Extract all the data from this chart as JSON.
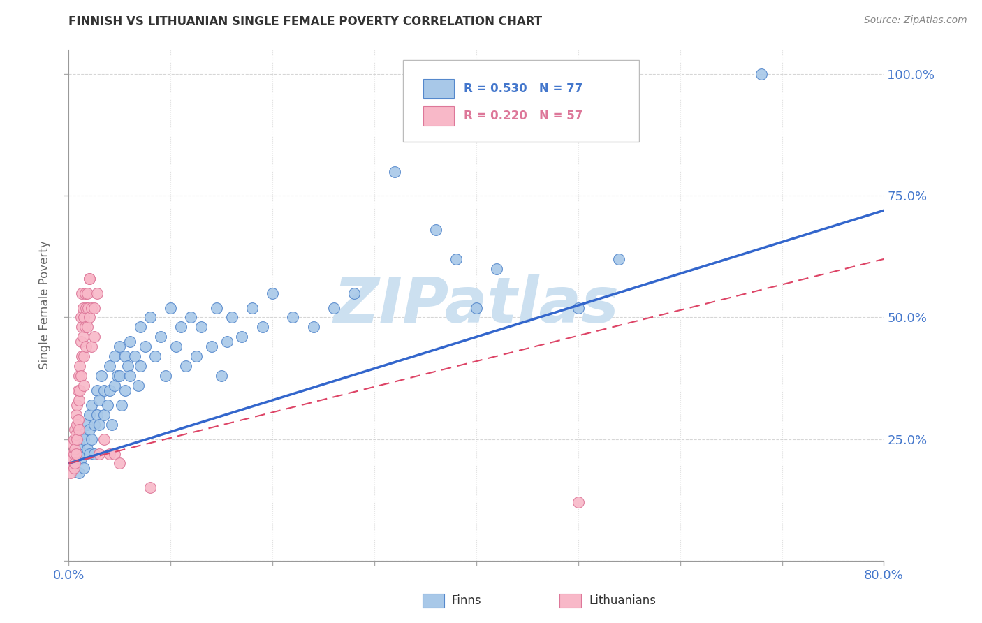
{
  "title": "FINNISH VS LITHUANIAN SINGLE FEMALE POVERTY CORRELATION CHART",
  "source": "Source: ZipAtlas.com",
  "ylabel": "Single Female Poverty",
  "legend_blue_r": "R = 0.530",
  "legend_blue_n": "N = 77",
  "legend_pink_r": "R = 0.220",
  "legend_pink_n": "N = 57",
  "legend_finns": "Finns",
  "legend_lithuanians": "Lithuanians",
  "blue_scatter_color": "#a8c8e8",
  "blue_edge_color": "#5588cc",
  "pink_scatter_color": "#f8b8c8",
  "pink_edge_color": "#dd7799",
  "blue_line_color": "#3366cc",
  "pink_line_color": "#dd4466",
  "watermark_color": "#cce0f0",
  "axis_label_color": "#4477cc",
  "grid_color": "#cccccc",
  "title_color": "#333333",
  "source_color": "#888888",
  "background_color": "#ffffff",
  "xlim": [
    0.0,
    0.8
  ],
  "ylim": [
    0.0,
    1.05
  ],
  "xtick_minor_positions": [
    0.1,
    0.2,
    0.3,
    0.4,
    0.5,
    0.6,
    0.7
  ],
  "ytick_positions": [
    0.0,
    0.25,
    0.5,
    0.75,
    1.0
  ],
  "blue_line_x": [
    0.0,
    0.8
  ],
  "blue_line_y": [
    0.2,
    0.72
  ],
  "pink_line_x": [
    0.0,
    0.8
  ],
  "pink_line_y": [
    0.2,
    0.62
  ],
  "finns_scatter": [
    [
      0.005,
      0.2
    ],
    [
      0.008,
      0.22
    ],
    [
      0.01,
      0.18
    ],
    [
      0.01,
      0.24
    ],
    [
      0.012,
      0.21
    ],
    [
      0.012,
      0.26
    ],
    [
      0.015,
      0.22
    ],
    [
      0.015,
      0.19
    ],
    [
      0.015,
      0.25
    ],
    [
      0.018,
      0.23
    ],
    [
      0.018,
      0.28
    ],
    [
      0.02,
      0.22
    ],
    [
      0.02,
      0.27
    ],
    [
      0.02,
      0.3
    ],
    [
      0.022,
      0.25
    ],
    [
      0.022,
      0.32
    ],
    [
      0.025,
      0.28
    ],
    [
      0.025,
      0.22
    ],
    [
      0.028,
      0.35
    ],
    [
      0.028,
      0.3
    ],
    [
      0.03,
      0.28
    ],
    [
      0.03,
      0.33
    ],
    [
      0.032,
      0.38
    ],
    [
      0.035,
      0.3
    ],
    [
      0.035,
      0.35
    ],
    [
      0.038,
      0.32
    ],
    [
      0.04,
      0.4
    ],
    [
      0.04,
      0.35
    ],
    [
      0.042,
      0.28
    ],
    [
      0.045,
      0.42
    ],
    [
      0.045,
      0.36
    ],
    [
      0.048,
      0.38
    ],
    [
      0.05,
      0.44
    ],
    [
      0.05,
      0.38
    ],
    [
      0.052,
      0.32
    ],
    [
      0.055,
      0.42
    ],
    [
      0.055,
      0.35
    ],
    [
      0.058,
      0.4
    ],
    [
      0.06,
      0.45
    ],
    [
      0.06,
      0.38
    ],
    [
      0.065,
      0.42
    ],
    [
      0.068,
      0.36
    ],
    [
      0.07,
      0.48
    ],
    [
      0.07,
      0.4
    ],
    [
      0.075,
      0.44
    ],
    [
      0.08,
      0.5
    ],
    [
      0.085,
      0.42
    ],
    [
      0.09,
      0.46
    ],
    [
      0.095,
      0.38
    ],
    [
      0.1,
      0.52
    ],
    [
      0.105,
      0.44
    ],
    [
      0.11,
      0.48
    ],
    [
      0.115,
      0.4
    ],
    [
      0.12,
      0.5
    ],
    [
      0.125,
      0.42
    ],
    [
      0.13,
      0.48
    ],
    [
      0.14,
      0.44
    ],
    [
      0.145,
      0.52
    ],
    [
      0.15,
      0.38
    ],
    [
      0.155,
      0.45
    ],
    [
      0.16,
      0.5
    ],
    [
      0.17,
      0.46
    ],
    [
      0.18,
      0.52
    ],
    [
      0.19,
      0.48
    ],
    [
      0.2,
      0.55
    ],
    [
      0.22,
      0.5
    ],
    [
      0.24,
      0.48
    ],
    [
      0.26,
      0.52
    ],
    [
      0.28,
      0.55
    ],
    [
      0.32,
      0.8
    ],
    [
      0.36,
      0.68
    ],
    [
      0.38,
      0.62
    ],
    [
      0.4,
      0.52
    ],
    [
      0.42,
      0.6
    ],
    [
      0.5,
      0.52
    ],
    [
      0.54,
      0.62
    ],
    [
      0.68,
      1.0
    ]
  ],
  "lithuanians_scatter": [
    [
      0.002,
      0.18
    ],
    [
      0.003,
      0.22
    ],
    [
      0.003,
      0.2
    ],
    [
      0.004,
      0.24
    ],
    [
      0.004,
      0.21
    ],
    [
      0.005,
      0.22
    ],
    [
      0.005,
      0.25
    ],
    [
      0.005,
      0.19
    ],
    [
      0.006,
      0.27
    ],
    [
      0.006,
      0.23
    ],
    [
      0.006,
      0.2
    ],
    [
      0.007,
      0.3
    ],
    [
      0.007,
      0.26
    ],
    [
      0.007,
      0.22
    ],
    [
      0.008,
      0.28
    ],
    [
      0.008,
      0.32
    ],
    [
      0.008,
      0.25
    ],
    [
      0.009,
      0.35
    ],
    [
      0.009,
      0.29
    ],
    [
      0.01,
      0.38
    ],
    [
      0.01,
      0.33
    ],
    [
      0.01,
      0.27
    ],
    [
      0.011,
      0.4
    ],
    [
      0.011,
      0.35
    ],
    [
      0.012,
      0.45
    ],
    [
      0.012,
      0.5
    ],
    [
      0.012,
      0.38
    ],
    [
      0.013,
      0.42
    ],
    [
      0.013,
      0.55
    ],
    [
      0.013,
      0.48
    ],
    [
      0.014,
      0.52
    ],
    [
      0.014,
      0.46
    ],
    [
      0.015,
      0.5
    ],
    [
      0.015,
      0.42
    ],
    [
      0.015,
      0.36
    ],
    [
      0.016,
      0.55
    ],
    [
      0.016,
      0.48
    ],
    [
      0.017,
      0.52
    ],
    [
      0.017,
      0.44
    ],
    [
      0.018,
      0.48
    ],
    [
      0.018,
      0.55
    ],
    [
      0.019,
      0.52
    ],
    [
      0.02,
      0.5
    ],
    [
      0.02,
      0.58
    ],
    [
      0.02,
      0.58
    ],
    [
      0.022,
      0.52
    ],
    [
      0.022,
      0.44
    ],
    [
      0.025,
      0.52
    ],
    [
      0.025,
      0.46
    ],
    [
      0.028,
      0.55
    ],
    [
      0.03,
      0.22
    ],
    [
      0.035,
      0.25
    ],
    [
      0.04,
      0.22
    ],
    [
      0.045,
      0.22
    ],
    [
      0.05,
      0.2
    ],
    [
      0.08,
      0.15
    ],
    [
      0.5,
      0.12
    ]
  ]
}
